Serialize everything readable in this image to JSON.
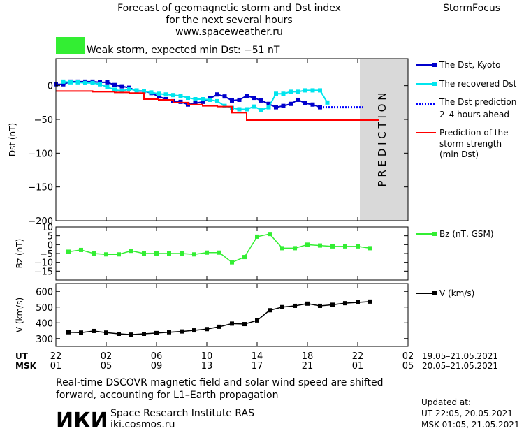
{
  "header": {
    "title_lines": [
      "Forecast of geomagnetic storm and Dst index",
      "for the next several hours",
      "www.spaceweather.ru"
    ],
    "brand": "StormFocus",
    "storm_label": "Weak storm, expected min Dst: −51 nT",
    "storm_color": "#33ee33"
  },
  "chart_data": [
    {
      "type": "line",
      "ylabel": "Dst (nT)",
      "ylim": [
        -200,
        40
      ],
      "yticks": [
        0,
        -50,
        -100,
        -150,
        -200
      ],
      "ytick_labels": [
        "0",
        "−50",
        "−100",
        "−150",
        "−200"
      ],
      "x_hours": [
        0,
        44
      ],
      "prediction_band": {
        "from": 36,
        "to": 44,
        "label": "P R E D I C T I O N",
        "color": "#d9d9d9"
      },
      "series": [
        {
          "name": "The Dst, Kyoto",
          "color": "#0000cc",
          "marker": "square",
          "x": [
            0,
            1,
            2,
            3,
            4,
            5,
            6,
            7,
            8,
            9,
            10,
            11,
            12,
            13,
            14,
            15,
            16,
            17,
            18,
            19,
            20,
            21,
            22,
            23,
            24,
            25,
            26,
            27,
            28,
            29,
            30,
            31,
            32,
            33,
            34,
            35,
            36
          ],
          "values": [
            2,
            2,
            6,
            6,
            6,
            6,
            5,
            5,
            1,
            -1,
            -3,
            -8,
            -8,
            -11,
            -16,
            -20,
            -23,
            -24,
            -28,
            -26,
            -24,
            -19,
            -13,
            -16,
            -22,
            -21,
            -15,
            -18,
            -22,
            -27,
            -32,
            -30,
            -27,
            -21,
            -26,
            -28,
            -32
          ]
        },
        {
          "name": "The recovered Dst",
          "color": "#00e5ee",
          "marker": "square",
          "x": [
            1,
            2,
            3,
            4,
            5,
            6,
            7,
            8,
            9,
            10,
            11,
            12,
            13,
            14,
            15,
            16,
            17,
            18,
            19,
            20,
            21,
            22,
            23,
            24,
            25,
            26,
            27,
            28,
            29,
            30,
            31,
            32,
            33,
            34,
            35,
            36,
            37
          ],
          "values": [
            6,
            5,
            5,
            4,
            4,
            2,
            -2,
            -6,
            -8,
            -5,
            -7,
            -8,
            -10,
            -12,
            -13,
            -14,
            -15,
            -18,
            -20,
            -20,
            -21,
            -23,
            -30,
            -33,
            -35,
            -35,
            -31,
            -36,
            -32,
            -12,
            -12,
            -9,
            -9,
            -7,
            -7,
            -7,
            -25
          ]
        },
        {
          "name": "The Dst prediction 2–4 hours ahead",
          "color": "#0000ff",
          "style": "dotted",
          "x": [
            36,
            42
          ],
          "values": [
            -32,
            -32
          ]
        },
        {
          "name": "Prediction of the storm strength (min Dst)",
          "color": "#ff0000",
          "style": "step",
          "x": [
            0,
            4,
            5,
            8,
            10,
            12,
            14,
            16,
            18,
            20,
            22,
            24,
            26,
            36,
            44
          ],
          "values": [
            -8,
            -8,
            -9,
            -10,
            -11,
            -20,
            -21,
            -25,
            -28,
            -30,
            -31,
            -40,
            -51,
            -51,
            -51
          ]
        }
      ],
      "legend": [
        "The Dst, Kyoto",
        "The recovered Dst",
        "The Dst prediction",
        "2–4 hours ahead",
        "Prediction of the",
        "storm strength",
        "(min Dst)"
      ]
    },
    {
      "type": "line",
      "ylabel": "Bz (nT)",
      "ylim": [
        -20,
        10
      ],
      "yticks": [
        10,
        5,
        0,
        -5,
        -10,
        -15
      ],
      "ytick_labels": [
        "10",
        "5",
        "0",
        "−5",
        "−10",
        "−15"
      ],
      "series": [
        {
          "name": "Bz (nT, GSM)",
          "color": "#33ee33",
          "marker": "square",
          "x": [
            2,
            4,
            6,
            8,
            10,
            12,
            14,
            16,
            18,
            20,
            22,
            24,
            26,
            28,
            30,
            32,
            34,
            36,
            38,
            40,
            42,
            44,
            46,
            48,
            50
          ],
          "values": [
            -4,
            -3,
            -5,
            -5.5,
            -5.5,
            -3.5,
            -5,
            -5,
            -5,
            -5,
            -5.5,
            -4.5,
            -4.5,
            -10,
            -7,
            4.5,
            6,
            -2,
            -2,
            0,
            -0.5,
            -1,
            -1,
            -1,
            -2
          ]
        }
      ],
      "legend": [
        "Bz (nT, GSM)"
      ]
    },
    {
      "type": "line",
      "ylabel": "V (km/s)",
      "ylim": [
        250,
        650
      ],
      "yticks": [
        600,
        500,
        400,
        300
      ],
      "ytick_labels": [
        "600",
        "500",
        "400",
        "300"
      ],
      "series": [
        {
          "name": "V (km/s)",
          "color": "#000000",
          "marker": "square",
          "x": [
            2,
            4,
            6,
            8,
            10,
            12,
            14,
            16,
            18,
            20,
            22,
            24,
            26,
            28,
            30,
            32,
            34,
            36,
            38,
            40,
            42,
            44,
            46,
            48,
            50
          ],
          "values": [
            340,
            338,
            348,
            338,
            330,
            325,
            330,
            335,
            340,
            345,
            352,
            360,
            375,
            395,
            392,
            415,
            480,
            500,
            508,
            522,
            508,
            515,
            525,
            530,
            535
          ]
        }
      ],
      "legend": [
        "V (km/s)"
      ]
    }
  ],
  "x_axis": {
    "ut_label": "UT",
    "msk_label": "MSK",
    "ut_ticks": [
      "22",
      "02",
      "06",
      "10",
      "14",
      "18",
      "22",
      "02"
    ],
    "msk_ticks": [
      "01",
      "05",
      "09",
      "13",
      "17",
      "21",
      "01",
      "05"
    ],
    "ut_range": "19.05–21.05.2021",
    "msk_range": "20.05–21.05.2021"
  },
  "footer": {
    "note_lines": [
      "Real-time DSCOVR magnetic field and solar wind speed are shifted",
      "forward, accounting for L1–Earth propagation"
    ],
    "logo": "ИКИ",
    "institute": "Space Research Institute RAS",
    "site": "iki.cosmos.ru",
    "updated_label": "Updated at:",
    "updated_ut": "UT   22:05, 20.05.2021",
    "updated_msk": "MSK 01:05, 21.05.2021"
  }
}
